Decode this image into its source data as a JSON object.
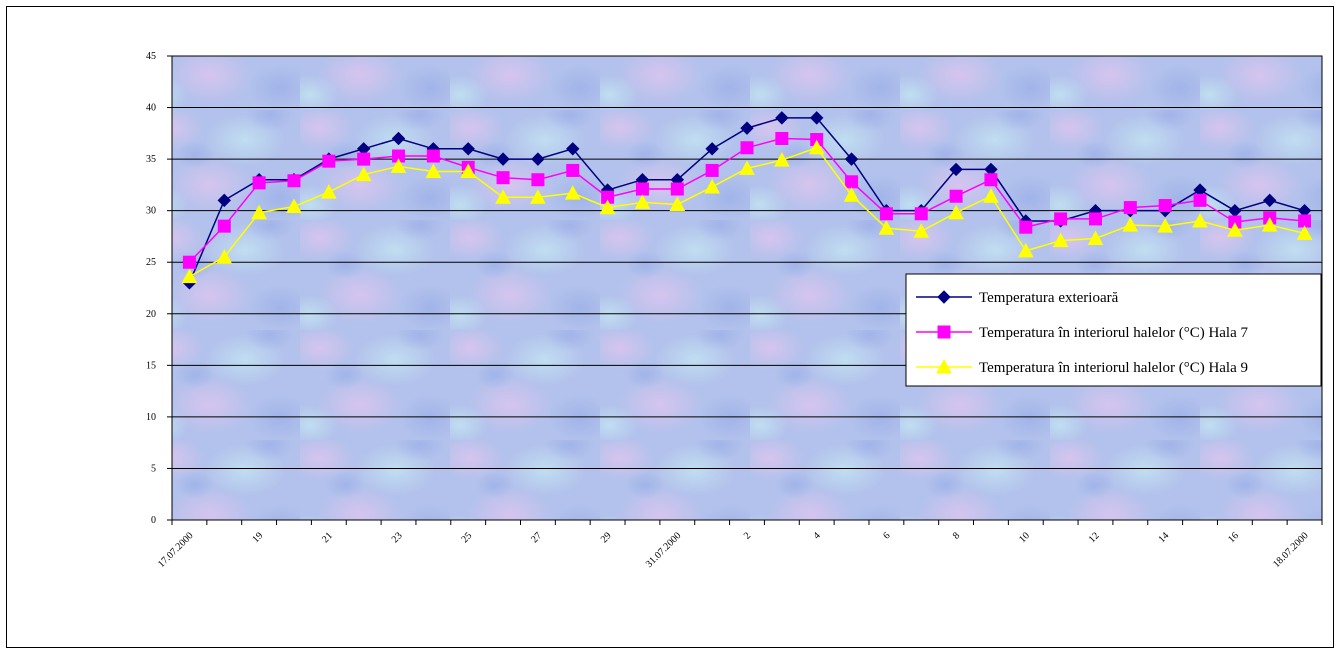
{
  "chart_data": {
    "type": "line",
    "title": "",
    "xlabel": "",
    "ylabel": "",
    "ylim": [
      0,
      45
    ],
    "yticks": [
      0,
      5,
      10,
      15,
      20,
      25,
      30,
      35,
      40,
      45
    ],
    "grid": true,
    "legend_position": "right",
    "categories": [
      "17.07.2000",
      "18",
      "19",
      "20",
      "21",
      "22",
      "23",
      "24",
      "25",
      "26",
      "27",
      "28",
      "29",
      "30",
      "31.07.2000",
      "1",
      "2",
      "3",
      "4",
      "5",
      "6",
      "7",
      "8",
      "9",
      "10",
      "11",
      "12",
      "13",
      "14",
      "15",
      "16",
      "17",
      "18.07.2000"
    ],
    "xtick_labels_shown": [
      "17.07.2000",
      "19",
      "21",
      "23",
      "25",
      "27",
      "29",
      "31.07.2000",
      "2",
      "4",
      "6",
      "8",
      "10",
      "12",
      "14",
      "16",
      "18.07.2000"
    ],
    "series": [
      {
        "name": "Temperatura exterioară",
        "color": "#000080",
        "marker": "diamond",
        "values": [
          23,
          31,
          33,
          33,
          35,
          36,
          37,
          36,
          36,
          35,
          35,
          36,
          32,
          33,
          33,
          36,
          38,
          39,
          39,
          35,
          30,
          30,
          34,
          34,
          29,
          29,
          30,
          30,
          30,
          32,
          30,
          31,
          30
        ]
      },
      {
        "name": "Temperatura în interiorul halelor (°C) Hala 7",
        "color": "#ff00ff",
        "marker": "square",
        "values": [
          25,
          28.5,
          32.7,
          32.9,
          34.8,
          35,
          35.3,
          35.3,
          34.2,
          33.2,
          33,
          33.9,
          31.3,
          32.1,
          32.1,
          33.9,
          36.1,
          37,
          36.9,
          32.8,
          29.7,
          29.7,
          31.4,
          33,
          28.4,
          29.2,
          29.2,
          30.3,
          30.5,
          31,
          28.9,
          29.3,
          29
        ]
      },
      {
        "name": "Temperatura în interiorul halelor (°C) Hala 9",
        "color": "#ffff00",
        "marker": "triangle",
        "values": [
          23.6,
          25.5,
          29.8,
          30.4,
          31.8,
          33.5,
          34.3,
          33.8,
          33.8,
          31.3,
          31.3,
          31.7,
          30.3,
          30.8,
          30.6,
          32.3,
          34.1,
          34.9,
          36.1,
          31.5,
          28.3,
          28,
          29.8,
          31.4,
          26.1,
          27.1,
          27.3,
          28.6,
          28.5,
          29,
          28.1,
          28.6,
          27.8
        ]
      }
    ]
  }
}
